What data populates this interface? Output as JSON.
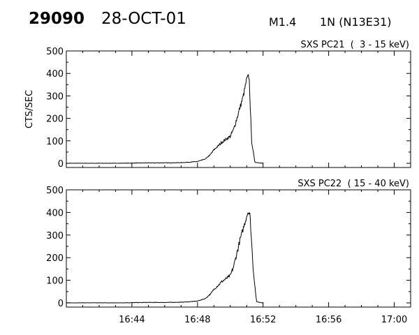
{
  "header": {
    "event_id": "29090",
    "date": "28-OCT-01",
    "flare_class": "M1.4",
    "location": "1N (N13E31)"
  },
  "chart_data": [
    {
      "type": "line",
      "title": "SXS PC21  (  3 - 15 keV)",
      "ylabel": "CTS/SEC",
      "xlabel": "",
      "ylim": [
        0,
        500
      ],
      "y_ticks": [
        0,
        100,
        200,
        300,
        400,
        500
      ],
      "x_ticks": [
        "16:44",
        "16:48",
        "16:52",
        "16:56",
        "17:00"
      ],
      "x_range": [
        "16:40",
        "17:01"
      ],
      "series": [
        {
          "x": [
            "16:40",
            "16:42",
            "16:43",
            "16:45",
            "16:46",
            "16:47",
            "16:47.5",
            "16:48",
            "16:48.5",
            "16:48.8",
            "16:49",
            "16:49.3",
            "16:49.5",
            "16:49.7",
            "16:50",
            "16:50.2",
            "16:50.4",
            "16:50.6",
            "16:50.8",
            "16:51",
            "16:51.1",
            "16:51.15",
            "16:51.3",
            "16:51.5",
            "16:52"
          ],
          "values": [
            0,
            0,
            0,
            2,
            2,
            3,
            5,
            8,
            20,
            40,
            60,
            80,
            95,
            105,
            120,
            150,
            200,
            250,
            300,
            375,
            385,
            385,
            100,
            5,
            0
          ]
        }
      ]
    },
    {
      "type": "line",
      "title": "SXS PC22  ( 15 - 40 keV)",
      "ylabel": "",
      "xlabel": "",
      "ylim": [
        0,
        500
      ],
      "y_ticks": [
        0,
        100,
        200,
        300,
        400,
        500
      ],
      "x_ticks": [
        "16:44",
        "16:48",
        "16:52",
        "16:56",
        "17:00"
      ],
      "x_range": [
        "16:40",
        "17:01"
      ],
      "series": [
        {
          "x": [
            "16:40",
            "16:42",
            "16:43",
            "16:45",
            "16:46",
            "16:47",
            "16:47.5",
            "16:48",
            "16:48.5",
            "16:48.8",
            "16:49",
            "16:49.3",
            "16:49.5",
            "16:49.7",
            "16:50",
            "16:50.2",
            "16:50.4",
            "16:50.6",
            "16:50.8",
            "16:51",
            "16:51.1",
            "16:51.2",
            "16:51.4",
            "16:51.6",
            "16:52"
          ],
          "values": [
            0,
            0,
            0,
            2,
            2,
            3,
            5,
            8,
            20,
            40,
            60,
            80,
            95,
            105,
            120,
            160,
            220,
            280,
            330,
            385,
            405,
            390,
            150,
            5,
            0
          ]
        }
      ]
    }
  ]
}
